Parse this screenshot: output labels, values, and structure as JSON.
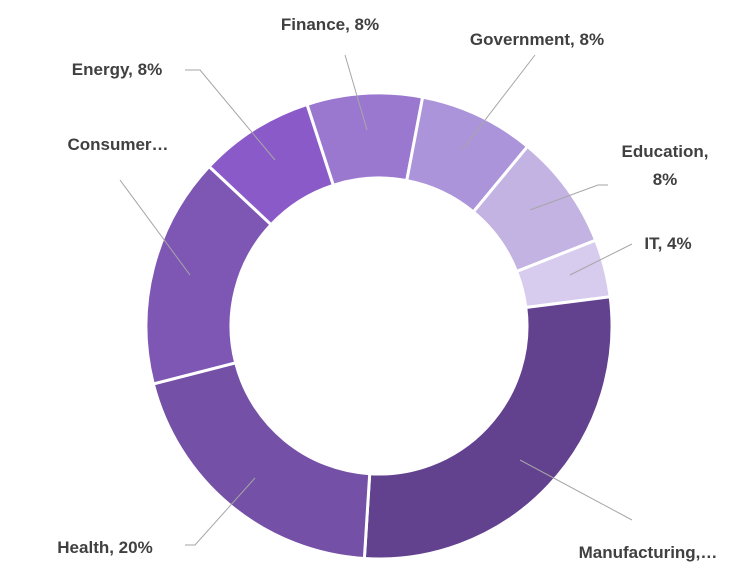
{
  "chart_data": {
    "type": "donut",
    "values": [
      8,
      8,
      8,
      4,
      28,
      20,
      16,
      8
    ],
    "value_labels": [
      "Finance, 8%",
      "Government, 8%",
      "Education, 8%",
      "IT, 4%",
      "Manufacturing,…",
      "Health, 20%",
      "Consumer…",
      "Energy, 8%"
    ],
    "colors": [
      "#9b78d0",
      "#ab94da",
      "#c3b3e2",
      "#d7cbee",
      "#62418f",
      "#7450a6",
      "#7e57b5",
      "#8a5ac8"
    ]
  }
}
